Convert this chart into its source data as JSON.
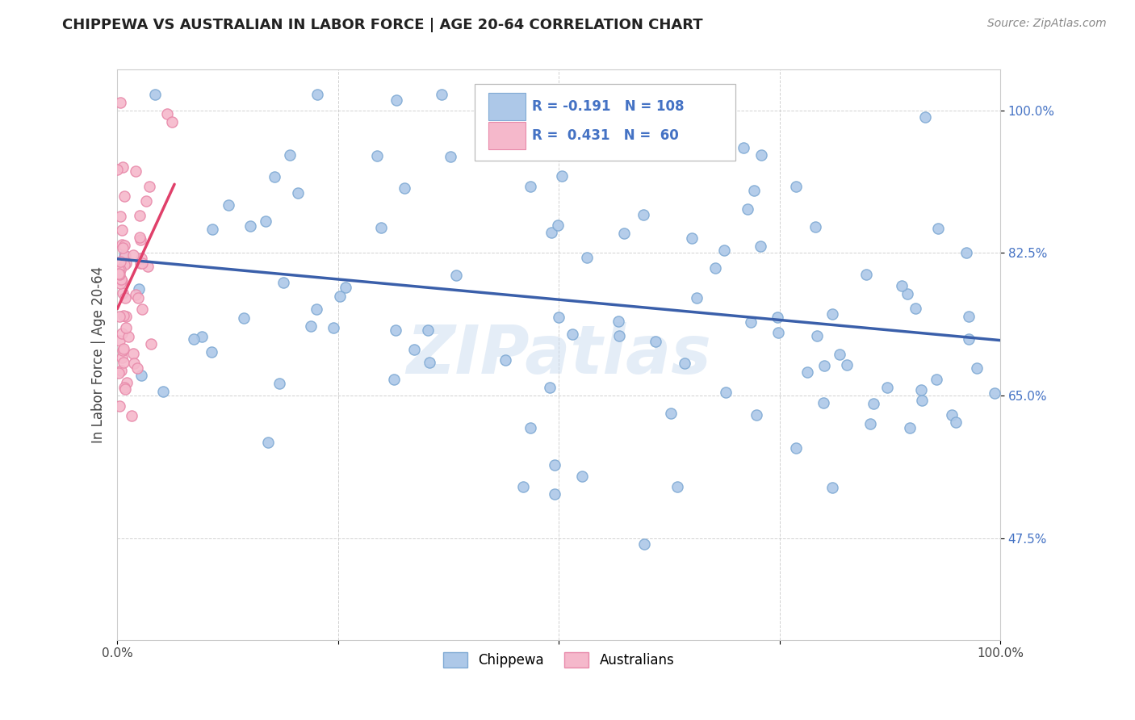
{
  "title": "CHIPPEWA VS AUSTRALIAN IN LABOR FORCE | AGE 20-64 CORRELATION CHART",
  "source": "Source: ZipAtlas.com",
  "ylabel": "In Labor Force | Age 20-64",
  "xlim": [
    0.0,
    1.0
  ],
  "ylim": [
    0.35,
    1.05
  ],
  "yticks": [
    0.475,
    0.65,
    0.825,
    1.0
  ],
  "ytick_labels": [
    "47.5%",
    "65.0%",
    "82.5%",
    "100.0%"
  ],
  "xtick_labels": [
    "0.0%",
    "100.0%"
  ],
  "chippewa_color": "#adc8e8",
  "australians_color": "#f5b8cb",
  "chippewa_edge": "#80aad4",
  "australians_edge": "#e88aaa",
  "blue_line_color": "#3a5faa",
  "pink_line_color": "#e0406a",
  "R_chippewa": -0.191,
  "N_chippewa": 108,
  "R_australians": 0.431,
  "N_australians": 60,
  "watermark": "ZIPatlas",
  "title_fontsize": 13,
  "source_fontsize": 10,
  "tick_fontsize": 11,
  "ylabel_fontsize": 12
}
